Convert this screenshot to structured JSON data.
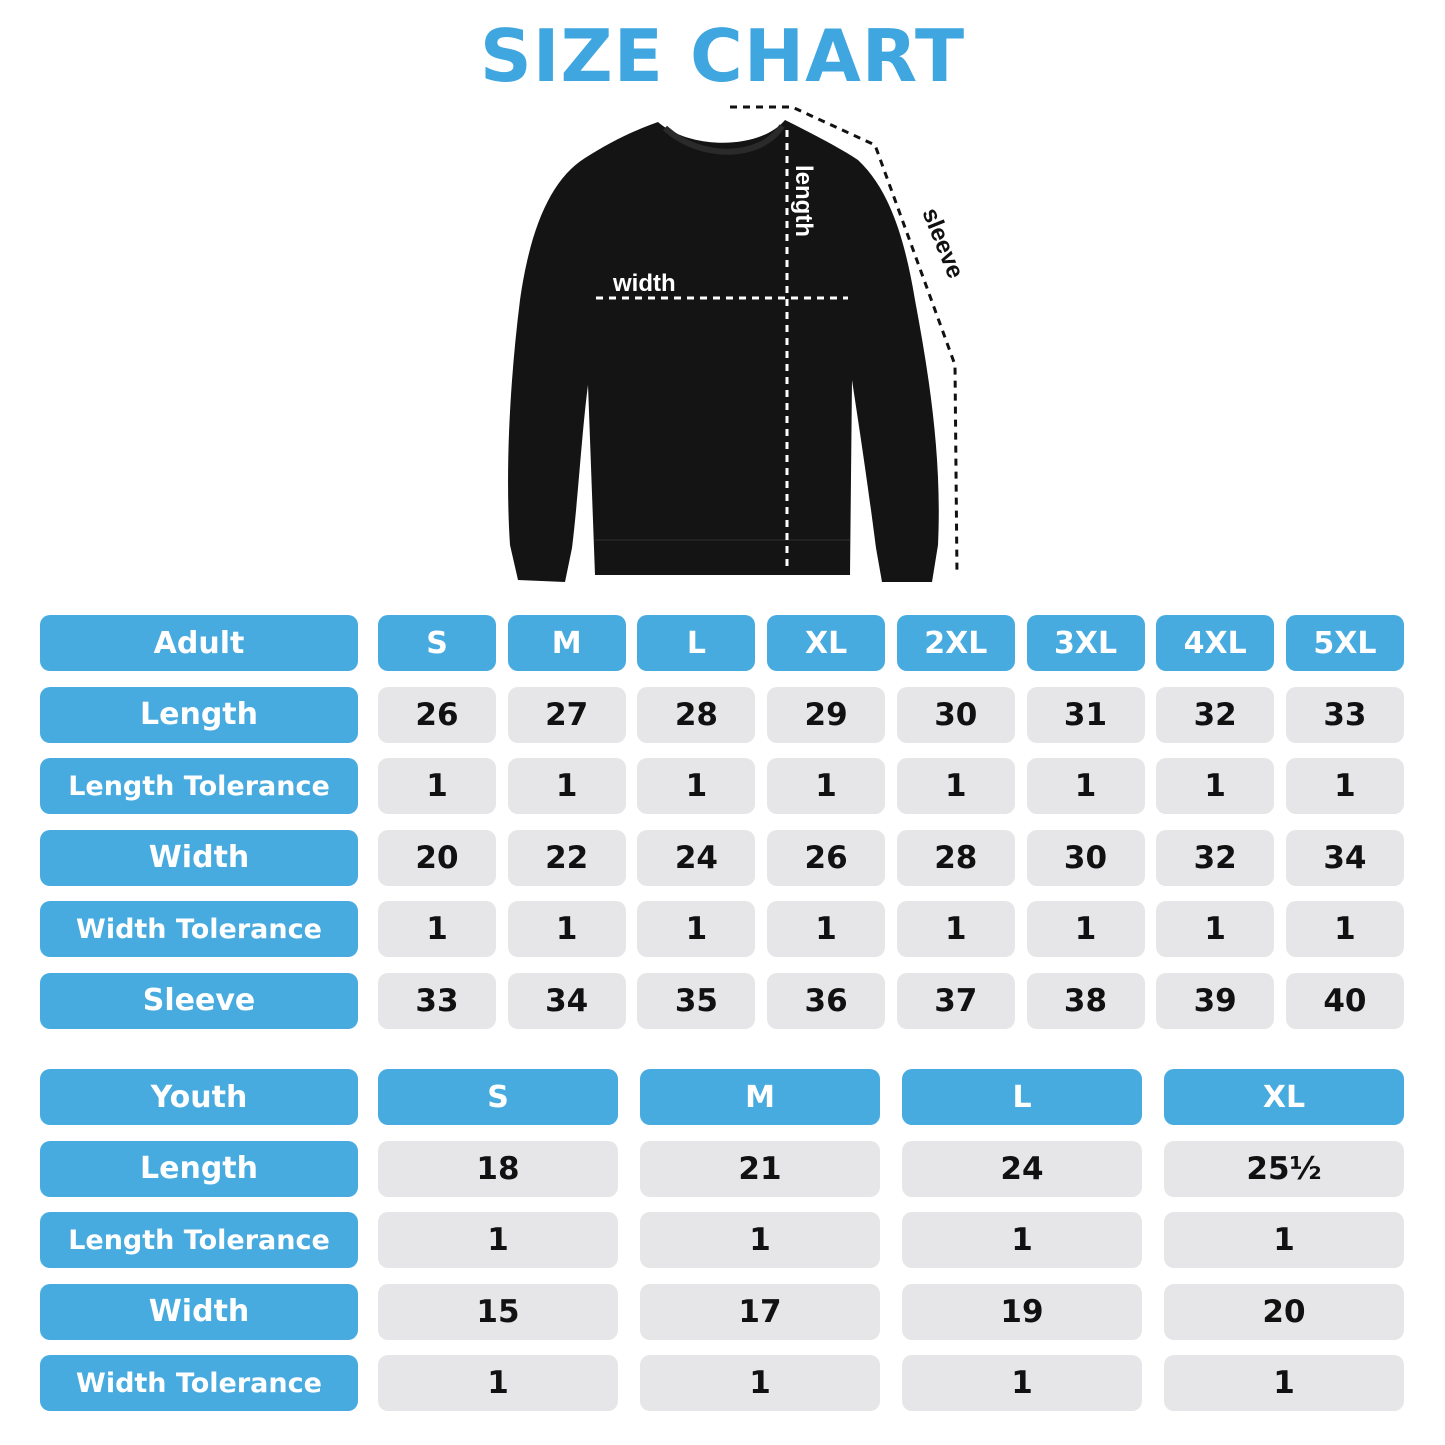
{
  "title": "SIZE CHART",
  "diagram": {
    "width_label": "width",
    "length_label": "length",
    "sleeve_label": "sleeve"
  },
  "colors": {
    "accent": "#47abe0",
    "cell": "#e6e6e8",
    "title": "#3fa6df"
  },
  "adult": {
    "header": "Adult",
    "sizes": [
      "S",
      "M",
      "L",
      "XL",
      "2XL",
      "3XL",
      "4XL",
      "5XL"
    ],
    "rows": [
      {
        "label": "Length",
        "values": [
          "26",
          "27",
          "28",
          "29",
          "30",
          "31",
          "32",
          "33"
        ]
      },
      {
        "label": "Length Tolerance",
        "values": [
          "1",
          "1",
          "1",
          "1",
          "1",
          "1",
          "1",
          "1"
        ]
      },
      {
        "label": "Width",
        "values": [
          "20",
          "22",
          "24",
          "26",
          "28",
          "30",
          "32",
          "34"
        ]
      },
      {
        "label": "Width Tolerance",
        "values": [
          "1",
          "1",
          "1",
          "1",
          "1",
          "1",
          "1",
          "1"
        ]
      },
      {
        "label": "Sleeve",
        "values": [
          "33",
          "34",
          "35",
          "36",
          "37",
          "38",
          "39",
          "40"
        ]
      }
    ]
  },
  "youth": {
    "header": "Youth",
    "sizes": [
      "S",
      "M",
      "L",
      "XL"
    ],
    "rows": [
      {
        "label": "Length",
        "values": [
          "18",
          "21",
          "24",
          "25½"
        ]
      },
      {
        "label": "Length Tolerance",
        "values": [
          "1",
          "1",
          "1",
          "1"
        ]
      },
      {
        "label": "Width",
        "values": [
          "15",
          "17",
          "19",
          "20"
        ]
      },
      {
        "label": "Width Tolerance",
        "values": [
          "1",
          "1",
          "1",
          "1"
        ]
      }
    ]
  }
}
